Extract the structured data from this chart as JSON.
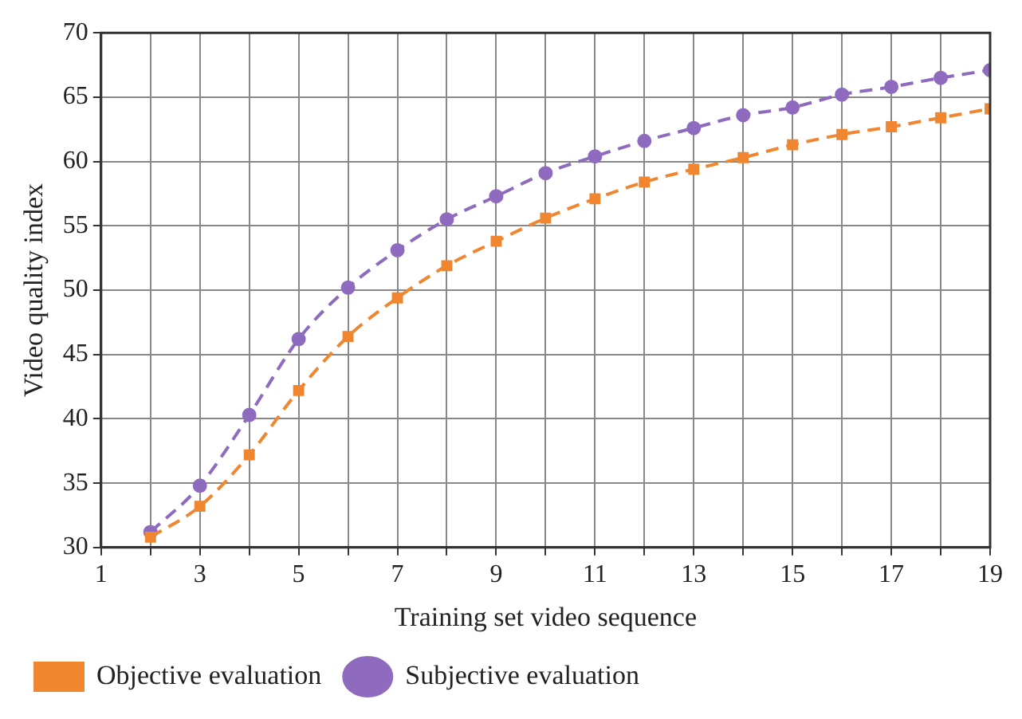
{
  "chart_data": {
    "type": "line",
    "xlabel": "Training set video sequence",
    "ylabel": "Video quality index",
    "xlim": [
      1,
      19
    ],
    "xticks": [
      1,
      {
        "value": 2,
        "label": null
      },
      3,
      {
        "value": 4,
        "label": null
      },
      5,
      {
        "value": 6,
        "label": null
      },
      7,
      {
        "value": 8,
        "label": null
      },
      9,
      {
        "value": 10,
        "label": null
      },
      11,
      {
        "value": 12,
        "label": null
      },
      13,
      {
        "value": 14,
        "label": null
      },
      15,
      {
        "value": 16,
        "label": null
      },
      17,
      {
        "value": 18,
        "label": null
      },
      19
    ],
    "ylim": [
      30,
      70
    ],
    "yticks": [
      30,
      35,
      40,
      45,
      50,
      55,
      60,
      65,
      70
    ],
    "x": [
      2,
      3,
      4,
      5,
      6,
      7,
      8,
      9,
      10,
      11,
      12,
      13,
      14,
      15,
      16,
      17,
      18,
      19
    ],
    "series": [
      {
        "name": "Subjective evaluation",
        "color": "#8e6bbf",
        "marker": "circle",
        "values": [
          31.2,
          34.8,
          40.3,
          46.2,
          50.2,
          53.1,
          55.5,
          57.3,
          59.1,
          60.4,
          61.6,
          62.6,
          63.6,
          64.2,
          65.2,
          65.8,
          66.5,
          67.1
        ]
      },
      {
        "name": "Objective evaluation",
        "color": "#f0862f",
        "marker": "square",
        "values": [
          30.8,
          33.2,
          37.2,
          42.2,
          46.4,
          49.4,
          51.9,
          53.8,
          55.6,
          57.1,
          58.4,
          59.4,
          60.3,
          61.3,
          62.1,
          62.7,
          63.4,
          64.1
        ]
      }
    ],
    "grid": true,
    "legend": "bottom left",
    "line_style": "dashed"
  }
}
